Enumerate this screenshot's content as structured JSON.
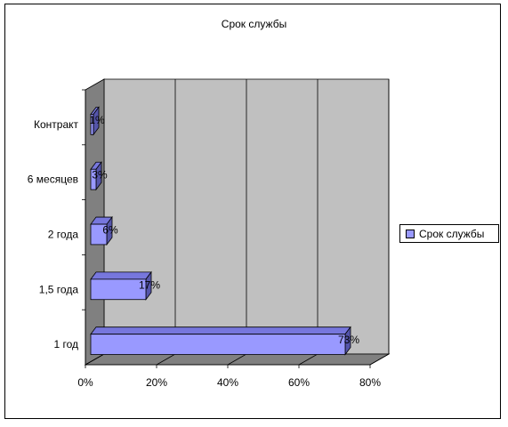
{
  "chart_data": {
    "type": "bar",
    "orientation": "horizontal",
    "three_d": true,
    "title": "Срок службы",
    "categories": [
      "Контракт",
      "6 месяцев",
      "2 года",
      "1,5 года",
      "1 год"
    ],
    "series": [
      {
        "name": "Срок службы",
        "values": [
          1,
          3,
          6,
          17,
          73
        ],
        "labels": [
          "1%",
          "3%",
          "6%",
          "17%",
          "73%"
        ],
        "color": "#9999ff"
      }
    ],
    "x_ticks": [
      "0%",
      "20%",
      "40%",
      "60%",
      "80%"
    ],
    "xlim": [
      0,
      80
    ],
    "grid": true,
    "legend_position": "right",
    "wall_color": "#c0c0c0",
    "floor_color": "#808080"
  }
}
